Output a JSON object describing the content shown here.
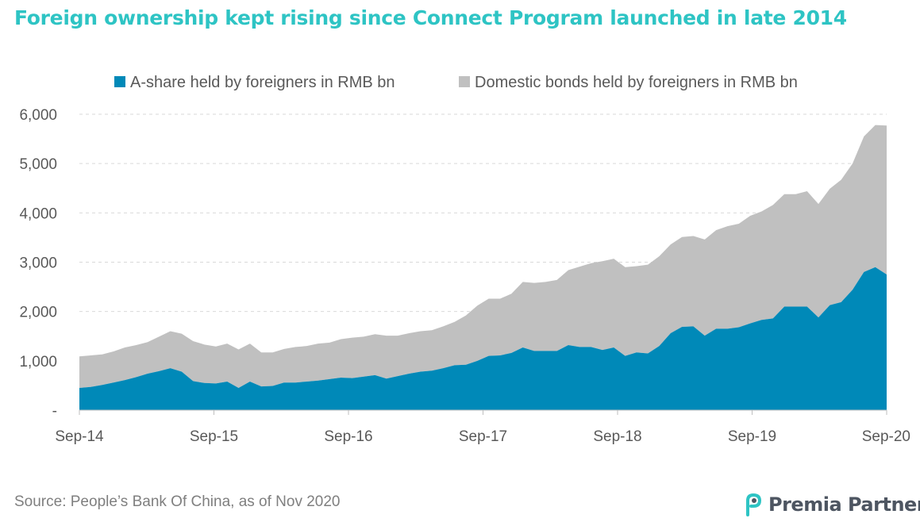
{
  "title": "Foreign ownership kept rising since Connect Program launched in late 2014",
  "source": "Source: People’s Bank Of China, as of Nov 2020",
  "logo": {
    "text": "Premia Partners",
    "icon": "premia-logo-icon",
    "color": "#2ec4c4"
  },
  "colors": {
    "series_a": "#0089b8",
    "series_b": "#c0c0c0",
    "title": "#2ec4c4"
  },
  "chart_data": {
    "type": "area",
    "stacked": true,
    "title": "",
    "xlabel": "",
    "ylabel": "",
    "ylim": [
      0,
      6000
    ],
    "y_ticks": [
      0,
      1000,
      2000,
      3000,
      4000,
      5000,
      6000
    ],
    "y_tick_labels": [
      "-",
      "1,000",
      "2,000",
      "3,000",
      "4,000",
      "5,000",
      "6,000"
    ],
    "x_tick_labels": [
      "Sep-14",
      "Sep-15",
      "Sep-16",
      "Sep-17",
      "Sep-18",
      "Sep-19",
      "Sep-20"
    ],
    "x_start": "2014-09",
    "grid": "horizontal-dashed",
    "legend_position": "top",
    "series": [
      {
        "name": "A-share held by foreigners in RMB bn",
        "color": "#0089b8",
        "values": [
          450,
          470,
          510,
          560,
          610,
          670,
          740,
          790,
          850,
          780,
          590,
          550,
          540,
          580,
          450,
          580,
          480,
          490,
          560,
          560,
          580,
          600,
          630,
          660,
          650,
          680,
          710,
          640,
          690,
          740,
          780,
          800,
          850,
          910,
          920,
          1000,
          1100,
          1110,
          1160,
          1270,
          1200,
          1200,
          1200,
          1320,
          1280,
          1280,
          1220,
          1270,
          1100,
          1170,
          1150,
          1300,
          1560,
          1690,
          1700,
          1510,
          1650,
          1650,
          1680,
          1760,
          1830,
          1860,
          2100,
          2100,
          2100,
          1880,
          2130,
          2190,
          2440,
          2800,
          2900,
          2750
        ]
      },
      {
        "name": "Domestic bonds held by foreigners in RMB bn",
        "color": "#c0c0c0",
        "values": [
          640,
          640,
          620,
          630,
          660,
          650,
          640,
          700,
          750,
          770,
          810,
          780,
          750,
          770,
          780,
          770,
          690,
          680,
          680,
          720,
          720,
          750,
          740,
          780,
          820,
          810,
          830,
          870,
          820,
          820,
          820,
          820,
          850,
          880,
          1000,
          1120,
          1160,
          1150,
          1200,
          1330,
          1380,
          1400,
          1440,
          1520,
          1630,
          1700,
          1800,
          1800,
          1800,
          1750,
          1800,
          1820,
          1800,
          1820,
          1830,
          1950,
          2000,
          2080,
          2100,
          2180,
          2200,
          2300,
          2280,
          2280,
          2340,
          2300,
          2360,
          2480,
          2560,
          2750,
          2880,
          3020
        ]
      }
    ]
  }
}
